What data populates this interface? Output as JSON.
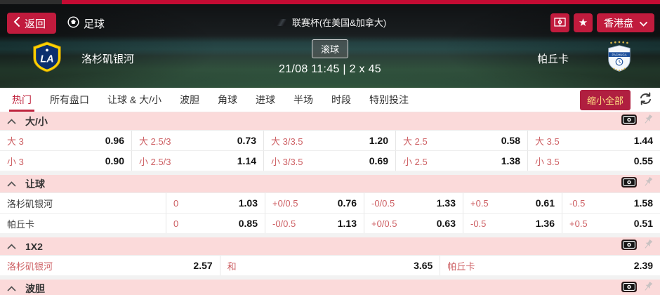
{
  "top": {
    "back_label": "返回",
    "sport_label": "足球",
    "league_label": "联赛杯(在美国&加拿大)",
    "odds_type_label": "香港盘"
  },
  "match": {
    "home_team": "洛杉矶银河",
    "away_team": "帕丘卡",
    "home_badge": "LA",
    "away_badge": "PACHUCA",
    "live_badge": "滚球",
    "kickoff": "21/08 11:45 | 2 x 45"
  },
  "tabs": [
    {
      "label": "热门",
      "active": true
    },
    {
      "label": "所有盘口",
      "active": false
    },
    {
      "label": "让球 & 大/小",
      "active": false
    },
    {
      "label": "波胆",
      "active": false
    },
    {
      "label": "角球",
      "active": false
    },
    {
      "label": "进球",
      "active": false
    },
    {
      "label": "半场",
      "active": false
    },
    {
      "label": "时段",
      "active": false
    },
    {
      "label": "特别投注",
      "active": false
    }
  ],
  "toolbar": {
    "collapse_all_label": "缩小全部"
  },
  "sections": [
    {
      "title": "大/小",
      "type": "pairs5",
      "rows": [
        [
          {
            "label": "大 3",
            "odds": "0.96"
          },
          {
            "label": "大 2.5/3",
            "odds": "0.73"
          },
          {
            "label": "大 3/3.5",
            "odds": "1.20"
          },
          {
            "label": "大 2.5",
            "odds": "0.58"
          },
          {
            "label": "大 3.5",
            "odds": "1.44"
          }
        ],
        [
          {
            "label": "小 3",
            "odds": "0.90"
          },
          {
            "label": "小 2.5/3",
            "odds": "1.14"
          },
          {
            "label": "小 3/3.5",
            "odds": "0.69"
          },
          {
            "label": "小 2.5",
            "odds": "1.38"
          },
          {
            "label": "小 3.5",
            "odds": "0.55"
          }
        ]
      ]
    },
    {
      "title": "让球",
      "type": "team5",
      "rows": [
        {
          "team": "洛杉矶银河",
          "cells": [
            {
              "label": "0",
              "odds": "1.03"
            },
            {
              "label": "+0/0.5",
              "odds": "0.76"
            },
            {
              "label": "-0/0.5",
              "odds": "1.33"
            },
            {
              "label": "+0.5",
              "odds": "0.61"
            },
            {
              "label": "-0.5",
              "odds": "1.58"
            }
          ]
        },
        {
          "team": "帕丘卡",
          "cells": [
            {
              "label": "0",
              "odds": "0.85"
            },
            {
              "label": "-0/0.5",
              "odds": "1.13"
            },
            {
              "label": "+0/0.5",
              "odds": "0.63"
            },
            {
              "label": "-0.5",
              "odds": "1.36"
            },
            {
              "label": "+0.5",
              "odds": "0.51"
            }
          ]
        }
      ]
    },
    {
      "title": "1X2",
      "type": "pairs3",
      "rows": [
        [
          {
            "label": "洛杉矶银河",
            "odds": "2.57"
          },
          {
            "label": "和",
            "odds": "3.65"
          },
          {
            "label": "帕丘卡",
            "odds": "2.39"
          }
        ]
      ]
    },
    {
      "title": "波胆",
      "type": "pairs3",
      "rows": [],
      "truncated": true
    }
  ],
  "colors": {
    "accent_red": "#c11b3d",
    "top_strip_red": "#c40b33",
    "section_header_pink": "#fbdada",
    "odds_label_red": "#cd5f63",
    "collapse_button_text": "#ffdf82",
    "active_tab_red": "#c0243e"
  }
}
